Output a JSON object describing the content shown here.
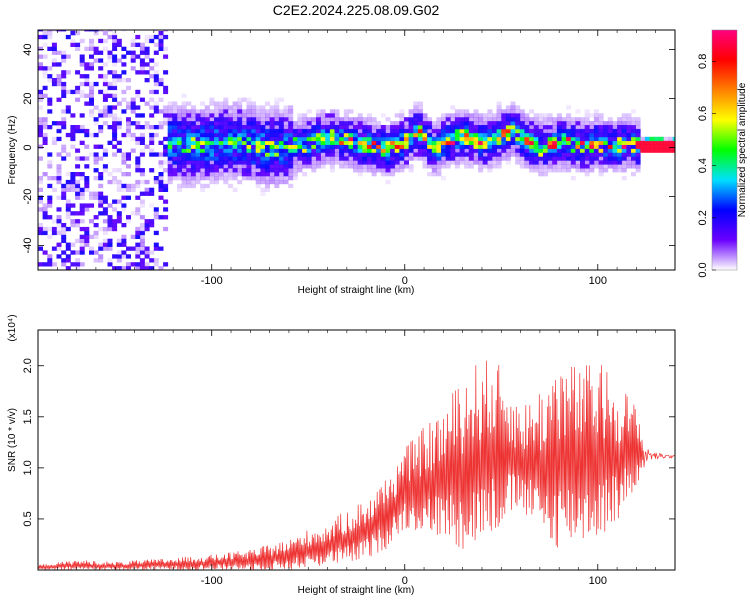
{
  "title": "C2E2.2024.225.08.09.G02",
  "chart_data": [
    {
      "type": "heatmap",
      "xlabel": "Height of straight line (km)",
      "ylabel": "Frequency (Hz)",
      "xlim": [
        -190,
        140
      ],
      "ylim": [
        -50,
        48
      ],
      "xticks": [
        -100,
        0,
        100
      ],
      "yticks": [
        -40,
        -20,
        0,
        20,
        40
      ],
      "colorbar": {
        "label": "Normalized spectral amplitude",
        "range": [
          0.0,
          0.92
        ],
        "ticks": [
          "0.0",
          "0.2",
          "0.4",
          "0.6",
          "0.8"
        ],
        "tick_values": [
          0.0,
          0.2,
          0.4,
          0.6,
          0.8
        ],
        "colors": [
          "#ffffff",
          "#6a00ff",
          "#0000ff",
          "#00e0ff",
          "#00ff00",
          "#ffff00",
          "#ff8000",
          "#ff0000",
          "#ff0080"
        ]
      },
      "ridge": {
        "x": [
          -130,
          -110,
          -90,
          -70,
          -50,
          -40,
          -30,
          -20,
          -10,
          0,
          5,
          10,
          15,
          20,
          30,
          40,
          50,
          55,
          60,
          70,
          80,
          90,
          100,
          110,
          115,
          120,
          140
        ],
        "y": [
          2,
          0,
          2,
          -1,
          1,
          4,
          2,
          0,
          -1,
          2,
          6,
          3,
          -2,
          2,
          4,
          1,
          5,
          6,
          3,
          -1,
          2,
          0,
          1,
          0,
          1,
          0,
          0
        ]
      }
    },
    {
      "type": "line",
      "xlabel": "Height of straight line (km)",
      "ylabel": "SNR (10 * v/v)",
      "yscale_label": "(x10⁴)",
      "xlim": [
        -190,
        140
      ],
      "ylim": [
        0,
        2.35
      ],
      "xticks": [
        -100,
        0,
        100
      ],
      "yticks": [
        0.5,
        1.0,
        1.5,
        2.0
      ],
      "series_color": "#ee3333",
      "envelope": {
        "x": [
          -190,
          -170,
          -150,
          -120,
          -100,
          -80,
          -60,
          -50,
          -40,
          -30,
          -20,
          -10,
          0,
          10,
          20,
          30,
          40,
          50,
          60,
          70,
          80,
          90,
          100,
          110,
          120,
          125,
          130,
          140
        ],
        "high": [
          0.05,
          0.1,
          0.08,
          0.12,
          0.15,
          0.2,
          0.3,
          0.4,
          0.45,
          0.6,
          0.7,
          0.9,
          1.2,
          1.4,
          1.6,
          1.9,
          2.1,
          2.0,
          1.6,
          1.8,
          2.1,
          2.0,
          2.05,
          1.9,
          1.6,
          1.2,
          1.15,
          1.12
        ],
        "low": [
          0.0,
          0.0,
          0.0,
          0.0,
          0.0,
          0.0,
          0.0,
          0.02,
          0.05,
          0.05,
          0.1,
          0.2,
          0.4,
          0.35,
          0.3,
          0.2,
          0.25,
          0.4,
          0.6,
          0.3,
          0.2,
          0.25,
          0.3,
          0.45,
          0.8,
          1.05,
          1.08,
          1.1
        ]
      }
    }
  ]
}
